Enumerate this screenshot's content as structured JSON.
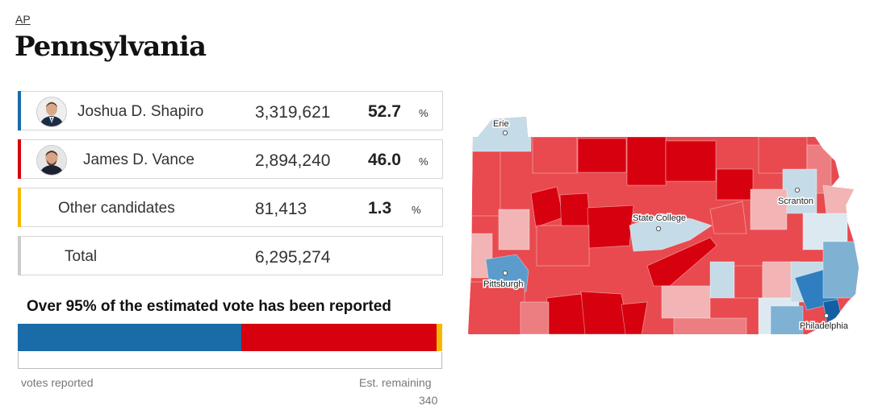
{
  "header": {
    "source_link": "AP",
    "state": "Pennsylvania"
  },
  "results": {
    "candidates": [
      {
        "name": "Joshua D. Shapiro",
        "votes": "3,319,621",
        "percent": "52.7",
        "percent_sign": "%",
        "color": "#1a6ca8"
      },
      {
        "name": "James D.  Vance",
        "votes": "2,894,240",
        "percent": "46.0",
        "percent_sign": "%",
        "color": "#d7000f"
      },
      {
        "name": "Other candidates",
        "votes": "81,413",
        "percent": "1.3",
        "percent_sign": "%",
        "color": "#f5b800"
      }
    ],
    "total": {
      "label": "Total",
      "votes": "6,295,274",
      "color": "#cccccc"
    }
  },
  "reporting": {
    "headline": "Over 95% of the estimated vote has been reported",
    "left_label": "votes reported",
    "right_label": "Est. remaining",
    "right_value": "340",
    "shares": [
      {
        "name": "Shapiro",
        "fraction": 0.527,
        "color": "#1a6ca8"
      },
      {
        "name": "Vance",
        "fraction": 0.46,
        "color": "#d7000f"
      },
      {
        "name": "Other",
        "fraction": 0.013,
        "color": "#f5b800"
      }
    ]
  },
  "map": {
    "cities": {
      "erie": "Erie",
      "scranton": "Scranton",
      "state_college": "State College",
      "pittsburgh": "Pittsburgh",
      "philadelphia": "Philadelphia"
    },
    "colors": {
      "dark_red": "#d7000f",
      "red": "#e84a4f",
      "medium_red": "#ec7d80",
      "light_red": "#f2b4b4",
      "light_blue": "#c5dbe8",
      "medium_blue": "#7fb1d3",
      "dark_blue": "#2f7fc0",
      "deep_blue": "#125fa3"
    }
  }
}
